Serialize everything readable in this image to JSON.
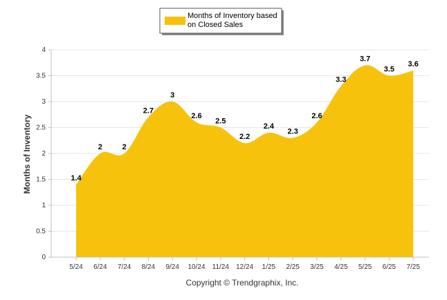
{
  "chart_data": {
    "type": "area",
    "categories": [
      "5/24",
      "6/24",
      "7/24",
      "8/24",
      "9/24",
      "10/24",
      "11/24",
      "12/24",
      "1/25",
      "2/25",
      "3/25",
      "4/25",
      "5/25",
      "6/25",
      "7/25"
    ],
    "series": [
      {
        "name": "Months of Inventory based on Closed Sales",
        "values": [
          1.4,
          2,
          2,
          2.7,
          3,
          2.6,
          2.5,
          2.2,
          2.4,
          2.3,
          2.6,
          3.3,
          3.7,
          3.5,
          3.6
        ],
        "labels": [
          "1.4",
          "2",
          "2",
          "2.7",
          "3",
          "2.6",
          "2.5",
          "2.2",
          "2.4",
          "2.3",
          "2.6",
          "3.3",
          "3.7",
          "3.5",
          "3.6"
        ],
        "color": "#F7C20C"
      }
    ],
    "ylabel": "Months of Inventory",
    "ylim": [
      0,
      4
    ],
    "yticks": [
      "0",
      "0.5",
      "1",
      "1.5",
      "2",
      "2.5",
      "3",
      "3.5",
      "4"
    ],
    "grid": true,
    "legend": {
      "position": "top-center",
      "line1": "Months of Inventory based",
      "line2": "on Closed Sales"
    },
    "footer": "Copyright © Trendgraphix, Inc."
  }
}
